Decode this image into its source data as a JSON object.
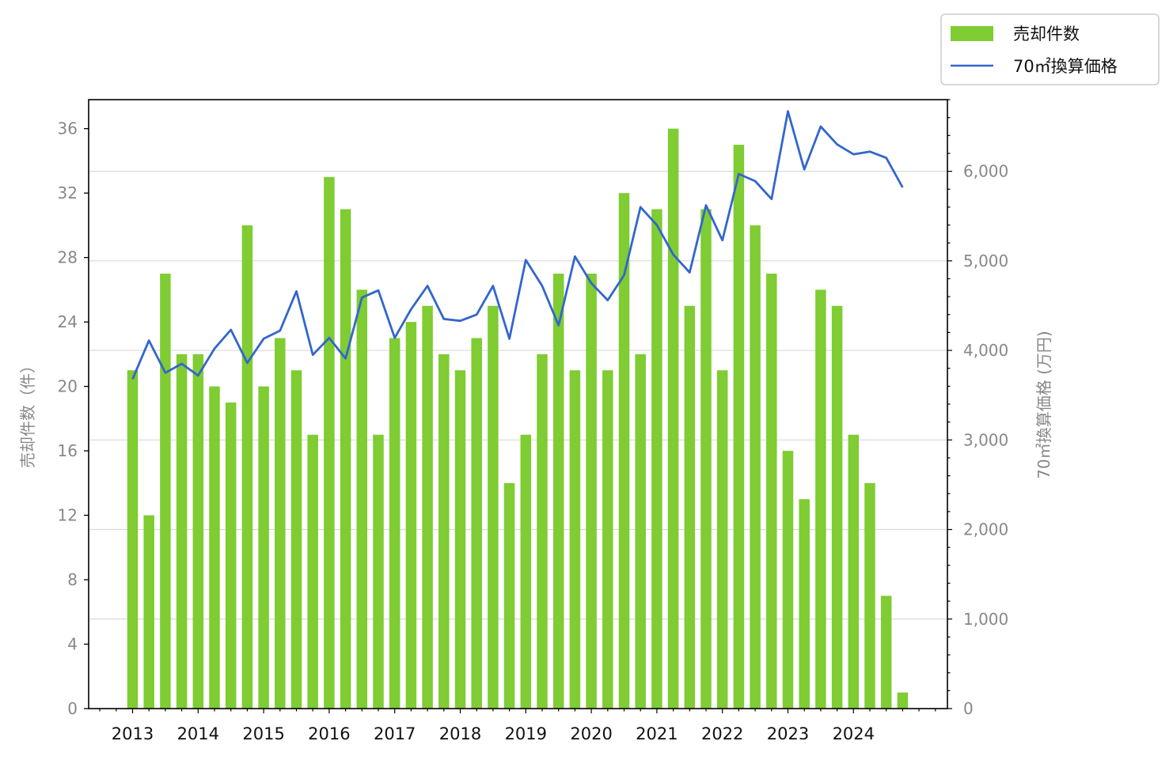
{
  "chart_data": {
    "type": "bar",
    "x_tick_labels": [
      "2013",
      "2014",
      "2015",
      "2016",
      "2017",
      "2018",
      "2019",
      "2020",
      "2021",
      "2022",
      "2023",
      "2024"
    ],
    "left_axis": {
      "label": "売却件数（件）",
      "ylim": [
        0,
        37.8
      ],
      "ticks": [
        "0",
        "4",
        "8",
        "12",
        "16",
        "20",
        "24",
        "28",
        "32",
        "36"
      ]
    },
    "right_axis": {
      "label": "70㎡換算価格 (万円)",
      "ylim": [
        0,
        6800
      ],
      "ticks": [
        "0",
        "1,000",
        "2,000",
        "3,000",
        "4,000",
        "5,000",
        "6,000"
      ]
    },
    "grid": "horizontal, right axis",
    "legend_position": "top-right outside",
    "series": [
      {
        "name": "売却件数",
        "kind": "bar",
        "axis": "left",
        "color": "#7fcc33",
        "values": [
          21,
          12,
          27,
          22,
          22,
          20,
          19,
          30,
          20,
          23,
          21,
          17,
          33,
          31,
          26,
          17,
          23,
          24,
          25,
          22,
          21,
          23,
          25,
          14,
          17,
          22,
          27,
          21,
          27,
          21,
          32,
          22,
          31,
          36,
          25,
          31,
          21,
          35,
          30,
          27,
          16,
          13,
          26,
          25,
          17,
          14,
          7,
          1
        ]
      },
      {
        "name": "70㎡換算価格",
        "kind": "line",
        "axis": "right",
        "color": "#3366cc",
        "values": [
          3680,
          4110,
          3750,
          3850,
          3720,
          4020,
          4230,
          3860,
          4130,
          4220,
          4660,
          3950,
          4140,
          3910,
          4590,
          4670,
          4140,
          4460,
          4720,
          4350,
          4330,
          4400,
          4720,
          4130,
          5010,
          4720,
          4280,
          5050,
          4750,
          4560,
          4840,
          5600,
          5400,
          5070,
          4870,
          5620,
          5230,
          5970,
          5890,
          5690,
          6670,
          6020,
          6500,
          6300,
          6190,
          6220,
          6150,
          5820
        ]
      }
    ]
  }
}
